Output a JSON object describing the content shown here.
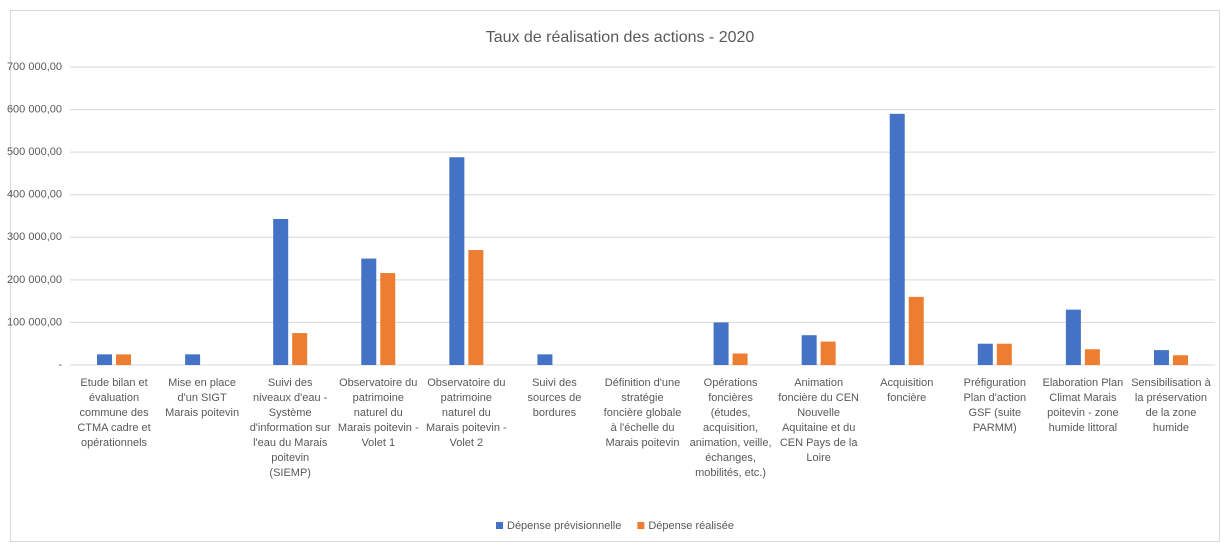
{
  "chart_data": {
    "type": "bar",
    "title": "Taux de réalisation des actions - 2020",
    "categories": [
      "Etude bilan et évaluation commune des CTMA cadre et opérationnels",
      "Mise en place d'un SIGT Marais poitevin",
      "Suivi des niveaux d'eau - Système d'information sur l'eau du Marais poitevin (SIEMP)",
      "Observatoire du patrimoine naturel du Marais poitevin - Volet 1",
      "Observatoire du patrimoine naturel du Marais poitevin - Volet 2",
      "Suivi des sources de bordures",
      "Définition d'une stratégie foncière globale à l'échelle du Marais poitevin",
      "Opérations foncières (études, acquisition, animation, veille, échanges, mobilités, etc.)",
      "Animation foncière du CEN Nouvelle Aquitaine et du CEN Pays de la Loire",
      "Acquisition foncière",
      "Préfiguration Plan d'action GSF (suite PARMM)",
      "Elaboration Plan Climat Marais poitevin - zone humide littoral",
      "Sensibilisation à la préservation de la zone humide"
    ],
    "series": [
      {
        "name": "Dépense prévisionnelle",
        "color": "#4472c4",
        "values": [
          25000,
          25000,
          343000,
          250000,
          488000,
          25000,
          0,
          100000,
          70000,
          590000,
          50000,
          130000,
          35000
        ]
      },
      {
        "name": "Dépense réalisée",
        "color": "#ed7d31",
        "values": [
          25000,
          0,
          75000,
          216000,
          270000,
          0,
          0,
          27000,
          55000,
          160000,
          50000,
          37000,
          23000
        ]
      }
    ],
    "ylim": [
      0,
      700000
    ],
    "yticks": [
      {
        "value": 0,
        "label": "-"
      },
      {
        "value": 100000,
        "label": "100 000,00"
      },
      {
        "value": 200000,
        "label": "200 000,00"
      },
      {
        "value": 300000,
        "label": "300 000,00"
      },
      {
        "value": 400000,
        "label": "400 000,00"
      },
      {
        "value": 500000,
        "label": "500 000,00"
      },
      {
        "value": 600000,
        "label": "600 000,00"
      },
      {
        "value": 700000,
        "label": "700 000,00"
      }
    ],
    "grid": true,
    "legend": "bottom"
  }
}
